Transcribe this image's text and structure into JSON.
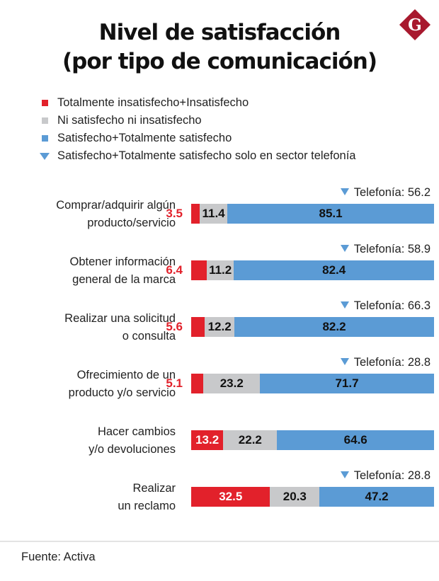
{
  "header": {
    "title_line1": "Nivel de satisfacción",
    "title_line2": "(por tipo de comunicación)",
    "logo_letter": "G",
    "logo_color": "#a8192e"
  },
  "legend": [
    {
      "label": "Totalmente insatisfecho+Insatisfecho",
      "color": "#e2212b",
      "marker": "square"
    },
    {
      "label": "Ni satisfecho ni insatisfecho",
      "color": "#c8c9cb",
      "marker": "square"
    },
    {
      "label": "Satisfecho+Totalmente satisfecho",
      "color": "#5b9bd5",
      "marker": "square"
    },
    {
      "label": "Satisfecho+Totalmente satisfecho solo en sector telefonía",
      "color": "#5b9bd5",
      "marker": "triangle-down"
    }
  ],
  "telefonia_prefix": "Telefonía: ",
  "chart_data": {
    "type": "bar",
    "orientation": "horizontal",
    "stacked": true,
    "title": "Nivel de satisfacción (por tipo de comunicación)",
    "xlabel": "",
    "ylabel": "",
    "xlim": [
      0,
      100
    ],
    "grid": false,
    "legend_position": "top-left",
    "categories": [
      [
        "Comprar/adquirir algún",
        "producto/servicio"
      ],
      [
        "Obtener información",
        "general de la marca"
      ],
      [
        "Realizar una solicitud",
        "o consulta"
      ],
      [
        "Ofrecimiento de un",
        "producto y/o servicio"
      ],
      [
        "Hacer cambios",
        "y/o devoluciones"
      ],
      [
        "Realizar",
        "un reclamo"
      ]
    ],
    "series": [
      {
        "name": "Totalmente insatisfecho+Insatisfecho",
        "color": "#e2212b",
        "values": [
          3.5,
          6.4,
          5.6,
          5.1,
          13.2,
          32.5
        ]
      },
      {
        "name": "Ni satisfecho ni insatisfecho",
        "color": "#c8c9cb",
        "values": [
          11.4,
          11.2,
          12.2,
          23.2,
          22.2,
          20.3
        ]
      },
      {
        "name": "Satisfecho+Totalmente satisfecho",
        "color": "#5b9bd5",
        "values": [
          85.1,
          82.4,
          82.2,
          71.7,
          64.6,
          47.2
        ]
      }
    ],
    "annotations": {
      "name": "Satisfecho+Totalmente satisfecho solo en sector telefonía",
      "values": [
        56.2,
        58.9,
        66.3,
        28.8,
        null,
        28.8
      ]
    }
  },
  "footer": {
    "source": "Fuente: Activa"
  }
}
